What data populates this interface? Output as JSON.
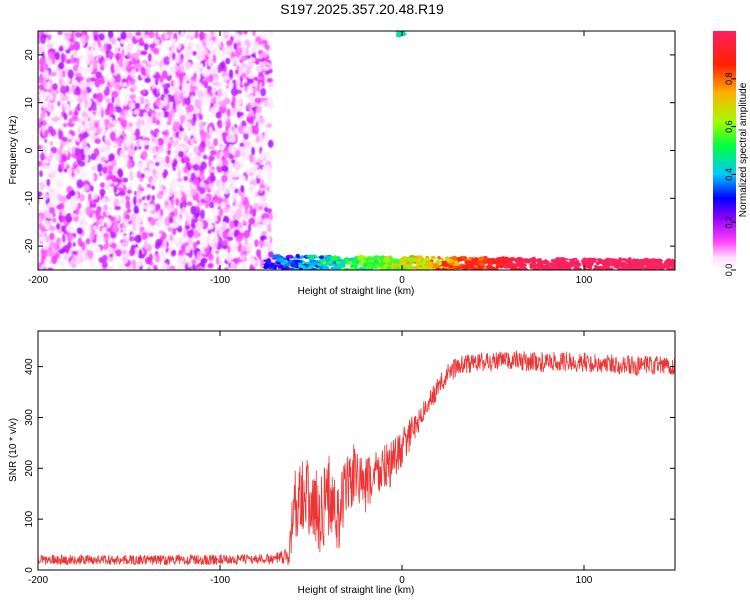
{
  "chart_data": [
    {
      "type": "heatmap",
      "title": "S197.2025.357.20.48.R19",
      "xlabel": "Height of straight line (km)",
      "ylabel": "Frequency (Hz)",
      "xlim": [
        -200,
        150
      ],
      "ylim": [
        -25,
        25
      ],
      "xticks": [
        -200,
        -100,
        0,
        100
      ],
      "xtick_labels": [
        "-200",
        "-100",
        "0",
        "100"
      ],
      "yticks": [
        -20,
        -10,
        0,
        10,
        20
      ],
      "ytick_labels": [
        "-20",
        "-10",
        "0",
        "10",
        "20"
      ],
      "colorbar": {
        "label": "Normalized spectral amplitude",
        "range": [
          0,
          1
        ],
        "ticks": [
          0.0,
          0.2,
          0.4,
          0.6,
          0.8
        ],
        "tick_labels": [
          "0.0",
          "0.2",
          "0.4",
          "0.6",
          "0.8"
        ],
        "colors": [
          "#ffffff",
          "#e040ff",
          "#8a00ff",
          "#0000ff",
          "#00d0ff",
          "#00ff00",
          "#d0ff00",
          "#ff8000",
          "#ff0000",
          "#ff2060"
        ]
      },
      "regions": [
        {
          "desc": "noise",
          "x": [
            -200,
            -72
          ],
          "y": [
            -25,
            25
          ],
          "amplitude": [
            0.02,
            0.2
          ]
        },
        {
          "desc": "low-frequency band",
          "x": [
            -75,
            150
          ],
          "y": [
            -25,
            -22
          ],
          "amplitude": [
            0.15,
            1.0
          ]
        },
        {
          "desc": "top-edge spot",
          "x": [
            -2,
            1
          ],
          "y": [
            24,
            25
          ],
          "amplitude": [
            0.3,
            0.45
          ]
        }
      ]
    },
    {
      "type": "line",
      "xlabel": "Height of straight line (km)",
      "ylabel": "SNR (10 * v/v)",
      "xlim": [
        -200,
        150
      ],
      "ylim": [
        0,
        470
      ],
      "xticks": [
        -200,
        -100,
        0,
        100
      ],
      "xtick_labels": [
        "-200",
        "-100",
        "0",
        "100"
      ],
      "yticks": [
        0,
        100,
        200,
        300,
        400
      ],
      "ytick_labels": [
        "0",
        "100",
        "200",
        "300",
        "400"
      ],
      "color": "#ee3333",
      "series": [
        {
          "name": "SNR",
          "x": [
            -200,
            -150,
            -100,
            -70,
            -62,
            -60,
            -55,
            -50,
            -45,
            -40,
            -35,
            -30,
            -25,
            -20,
            -15,
            -10,
            -5,
            0,
            5,
            10,
            15,
            20,
            25,
            30,
            40,
            50,
            60,
            70,
            80,
            90,
            100,
            110,
            120,
            130,
            140,
            150
          ],
          "y": [
            20,
            20,
            20,
            22,
            25,
            120,
            160,
            130,
            110,
            150,
            100,
            170,
            190,
            160,
            190,
            200,
            210,
            240,
            270,
            300,
            330,
            360,
            385,
            400,
            408,
            410,
            412,
            410,
            408,
            410,
            408,
            405,
            405,
            400,
            402,
            400
          ],
          "noise_amplitude": [
            10,
            10,
            10,
            10,
            20,
            70,
            80,
            80,
            80,
            80,
            70,
            70,
            60,
            60,
            50,
            50,
            45,
            40,
            30,
            25,
            20,
            20,
            20,
            20,
            20,
            20,
            20,
            20,
            20,
            20,
            20,
            20,
            20,
            20,
            20,
            20
          ]
        }
      ]
    }
  ]
}
